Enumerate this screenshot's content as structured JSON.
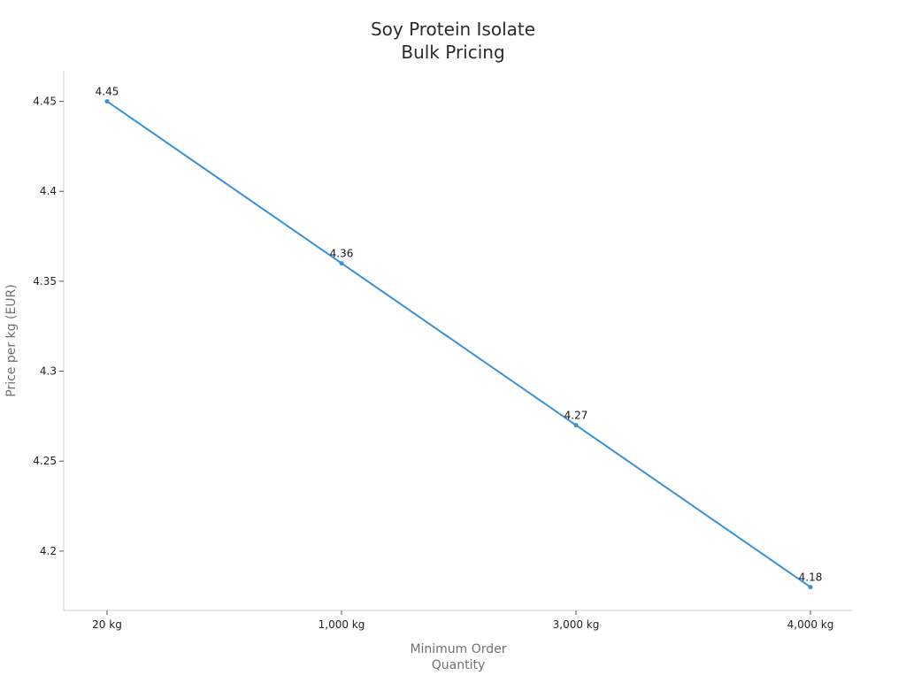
{
  "chart_data": {
    "type": "line",
    "title": [
      "Soy Protein Isolate",
      "Bulk Pricing"
    ],
    "xlabel": [
      "Minimum Order",
      "Quantity"
    ],
    "ylabel": "Price per kg (EUR)",
    "categories": [
      "20 kg",
      "1,000 kg",
      "3,000 kg",
      "4,000 kg"
    ],
    "series": [
      {
        "values": [
          4.45,
          4.36,
          4.27,
          4.18
        ],
        "data_labels": [
          "4.45",
          "4.36",
          "4.27",
          "4.18"
        ]
      }
    ],
    "ylim": [
      4.167,
      4.467
    ],
    "yticks": [
      4.2,
      4.25,
      4.3,
      4.35,
      4.4,
      4.45
    ],
    "ytick_labels": [
      "4.2",
      "4.25",
      "4.3",
      "4.35",
      "4.4",
      "4.45"
    ],
    "grid": false,
    "colors": {
      "series": "#3a8fd9",
      "axis": "#cccccc"
    }
  }
}
